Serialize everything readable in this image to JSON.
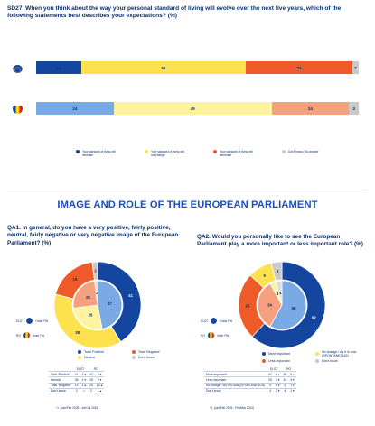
{
  "sd27": {
    "title": "SD27. When you think about the way your personal standard of living will evolve over the next five years, which of the following statements best describes your expectations? (%)",
    "rows": [
      {
        "flag": "EU",
        "values": [
          14,
          51,
          33,
          2
        ]
      },
      {
        "flag": "RO",
        "values": [
          24,
          49,
          24,
          3
        ]
      }
    ],
    "legend": [
      {
        "label": "Your standard of living will increase",
        "color": "#1446a0"
      },
      {
        "label": "Your standard of living will not change",
        "color": "#ffe14d"
      },
      {
        "label": "Your standard of living will decrease",
        "color": "#f05a28"
      },
      {
        "label": "Don't know / No answer",
        "color": "#c9c9c9"
      }
    ],
    "row_colors": [
      [
        "#1446a0",
        "#ffe14d",
        "#f05a28",
        "#c9c9c9"
      ],
      [
        "#7aaae6",
        "#fff3a0",
        "#f7a07f",
        "#c9c9c9"
      ]
    ]
  },
  "section_title": "IMAGE AND ROLE OF THE EUROPEAN PARLIAMENT",
  "qa1": {
    "title": "QA1. In general, do you have a very positive, fairly positive, neutral, fairly negative or very negative image of the European Parliament? (%)",
    "outer": [
      41,
      38,
      19,
      2
    ],
    "inner": [
      47,
      26,
      25,
      2
    ],
    "colors_outer": [
      "#1446a0",
      "#ffe14d",
      "#f05a28",
      "#c9c9c9"
    ],
    "colors_inner": [
      "#7aaae6",
      "#fff3a0",
      "#f7a07f",
      "#dcdcdc"
    ],
    "outer_key": "Outer Pie",
    "inner_key": "Inner Pie",
    "eu_label": "EU27",
    "ro_label": "RO",
    "legend": [
      {
        "label": "Total 'Positive'",
        "color": "#1446a0"
      },
      {
        "label": "Total 'Negative'",
        "color": "#f05a28"
      },
      {
        "label": "Neutral",
        "color": "#ffe14d"
      },
      {
        "label": "Don't know",
        "color": "#c9c9c9"
      }
    ],
    "table": {
      "headers": [
        "",
        "EU27",
        "",
        "RO",
        ""
      ],
      "rows": [
        [
          "Total 'Positive'",
          "41",
          "1 ▾",
          "47",
          "6 ▾"
        ],
        [
          "Neutral",
          "38",
          "1 ▾",
          "26",
          "9 ▾"
        ],
        [
          "Total 'Negative'",
          "19",
          "1 ▴",
          "25",
          "14 ▴"
        ],
        [
          "Don't know",
          "2",
          "=",
          "2",
          "1 ▴"
        ]
      ]
    },
    "note": "+/- (Jan/Feb 2025 - Jun/Jul 2024)"
  },
  "qa2": {
    "title": "QA2. Would you personally like to see the European Parliament play a more important or less important role? (%)",
    "outer": [
      62,
      25,
      9,
      4
    ],
    "inner": [
      58,
      34,
      4,
      4
    ],
    "colors_outer": [
      "#1446a0",
      "#f05a28",
      "#ffe14d",
      "#c9c9c9"
    ],
    "colors_inner": [
      "#7aaae6",
      "#f7a07f",
      "#fff3a0",
      "#dcdcdc"
    ],
    "outer_key": "Outer Pie",
    "inner_key": "Inner Pie",
    "eu_label": "EU27",
    "ro_label": "RO",
    "legend": [
      {
        "label": "More important",
        "color": "#1446a0"
      },
      {
        "label": "No change / As it is now (SPONTANEOUS)",
        "color": "#ffe14d"
      },
      {
        "label": "Less important",
        "color": "#f05a28"
      },
      {
        "label": "Don't know",
        "color": "#c9c9c9"
      }
    ],
    "table": {
      "headers": [
        "",
        "EU27",
        "",
        "RO",
        ""
      ],
      "rows": [
        [
          "More important",
          "62",
          "6 ▴",
          "58",
          "5 ▴"
        ],
        [
          "Less important",
          "25",
          "3 ▾",
          "34",
          "3 ▾"
        ],
        [
          "No change / As it is now (SPONTANEOUS)",
          "9",
          "1 ▾",
          "4",
          "1 ▾"
        ],
        [
          "Don't know",
          "4",
          "2 ▾",
          "4",
          "1 ▾"
        ]
      ]
    },
    "note": "+/- (Jan/Feb 2025 - Feb/Mar 2024)"
  }
}
